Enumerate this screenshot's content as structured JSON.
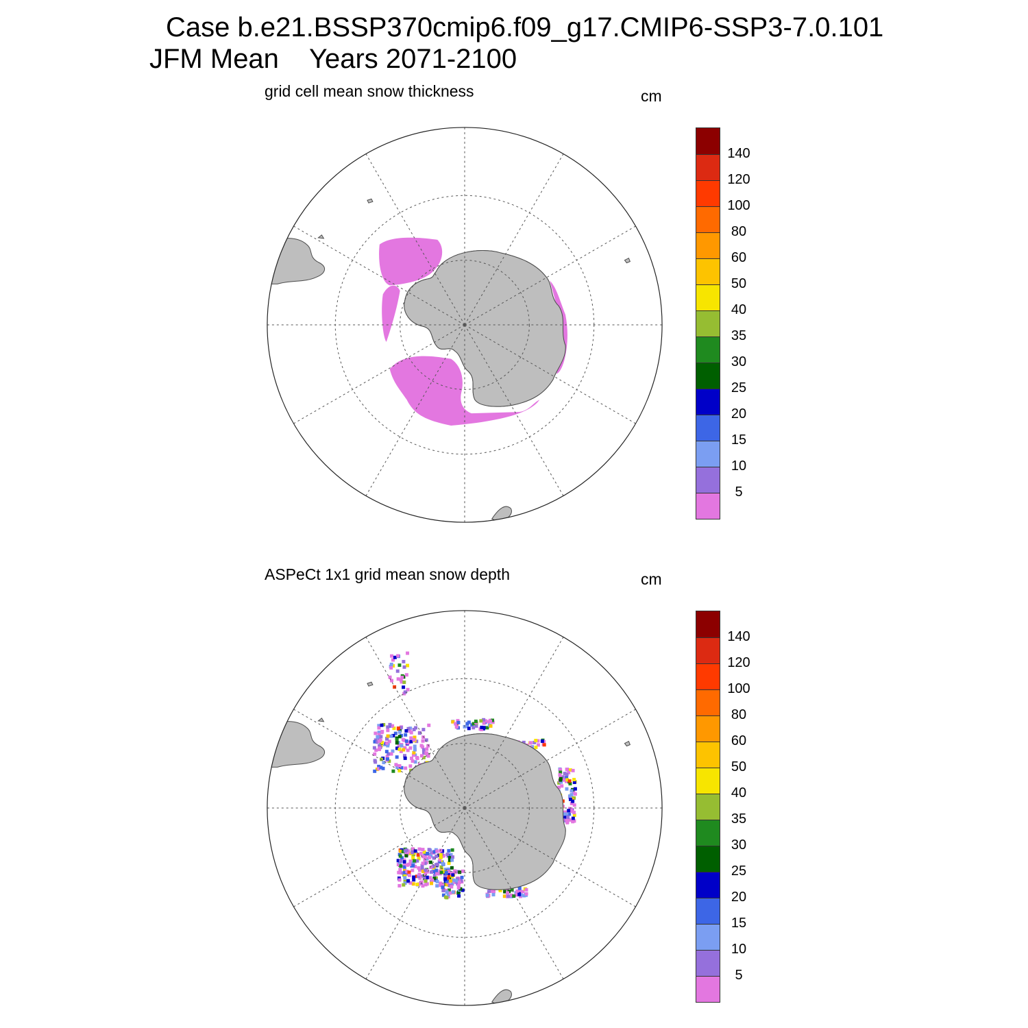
{
  "header": {
    "case_line": "Case b.e21.BSSP370cmip6.f09_g17.CMIP6-SSP3-7.0.101",
    "season": "JFM Mean",
    "years": "Years 2071-2100"
  },
  "panels": [
    {
      "title": "grid cell mean snow thickness",
      "units": "cm"
    },
    {
      "title": "ASPeCt 1x1 grid mean snow depth",
      "units": "cm"
    }
  ],
  "colorbar": {
    "labels": [
      "5",
      "10",
      "15",
      "20",
      "25",
      "30",
      "35",
      "40",
      "50",
      "60",
      "80",
      "100",
      "120",
      "140"
    ],
    "colors": [
      "#e377e0",
      "#9570dc",
      "#7b9ef2",
      "#3d66e6",
      "#0000c8",
      "#005f00",
      "#1f8a1f",
      "#96bd32",
      "#f7e500",
      "#fdc300",
      "#ff9800",
      "#ff6a00",
      "#ff3a00",
      "#dc2a12",
      "#8c0000"
    ]
  },
  "map_colors": {
    "land": "#bebebe",
    "coast": "#4b4b4b",
    "grid": "#555555",
    "snow_thin": "#e377e0"
  }
}
